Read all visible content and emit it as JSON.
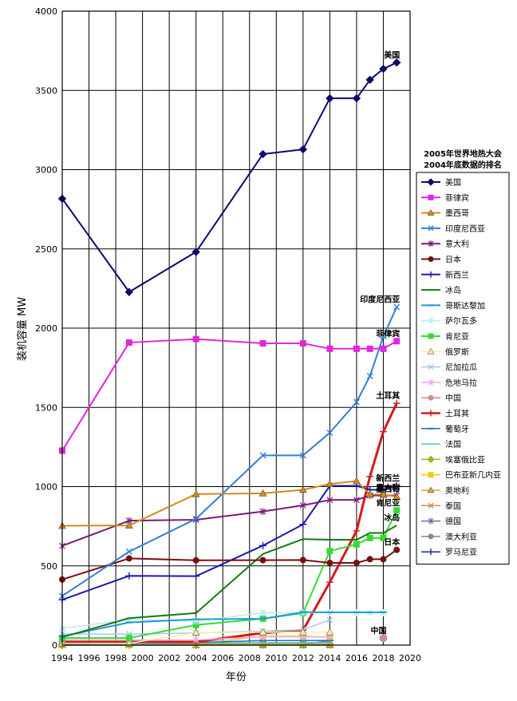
{
  "chart_data": {
    "type": "line",
    "title": "",
    "xlabel": "年份",
    "ylabel": "装机容量 MW",
    "xlim": [
      1994,
      2020
    ],
    "ylim": [
      0,
      4000
    ],
    "x_ticks": [
      "1994",
      "1996",
      "1998",
      "2000",
      "2002",
      "2004",
      "2006",
      "2008",
      "2010",
      "2012",
      "2014",
      "2016",
      "2018",
      "2020"
    ],
    "y_ticks": [
      "0",
      "500",
      "1000",
      "1500",
      "2000",
      "2500",
      "3000",
      "3500",
      "4000"
    ],
    "grid": true,
    "legend": {
      "placement": "right",
      "title_line1": "2005年世界地热大会",
      "title_line2": "2004年底数据的排名"
    },
    "series": [
      {
        "name": "美国",
        "color": "#0b0b6e",
        "marker": "diamond",
        "width": 2,
        "x": [
          1994,
          1999,
          2004,
          2009,
          2012,
          2014,
          2016,
          2017,
          2018,
          2019
        ],
        "y": [
          2817,
          2228,
          2481,
          3098,
          3128,
          3450,
          3450,
          3567,
          3636,
          3676
        ]
      },
      {
        "name": "菲律宾",
        "color": "#e026e0",
        "marker": "square",
        "width": 2,
        "x": [
          1994,
          1999,
          2004,
          2009,
          2012,
          2014,
          2016,
          2017,
          2018,
          2019
        ],
        "y": [
          1227,
          1909,
          1931,
          1904,
          1904,
          1870,
          1870,
          1870,
          1870,
          1918
        ]
      },
      {
        "name": "墨西哥",
        "color": "#d4891c",
        "marker": "triangle",
        "width": 2,
        "x": [
          1994,
          1999,
          2004,
          2009,
          2012,
          2014,
          2016,
          2017,
          2018,
          2019
        ],
        "y": [
          753,
          755,
          953,
          958,
          980,
          1017,
          1035,
          951,
          951,
          936
        ]
      },
      {
        "name": "印度尼西亚",
        "color": "#2f7fd6",
        "marker": "x",
        "width": 2,
        "x": [
          1994,
          1999,
          2004,
          2009,
          2012,
          2014,
          2016,
          2017,
          2018,
          2019
        ],
        "y": [
          310,
          590,
          797,
          1197,
          1197,
          1340,
          1534,
          1698,
          1948,
          2133
        ]
      },
      {
        "name": "意大利",
        "color": "#7a1a7a",
        "marker": "star",
        "width": 2,
        "x": [
          1994,
          1999,
          2004,
          2009,
          2012,
          2014,
          2016,
          2017,
          2018,
          2019
        ],
        "y": [
          626,
          785,
          791,
          843,
          882,
          916,
          916,
          944,
          944,
          944
        ]
      },
      {
        "name": "日本",
        "color": "#7a0f0f",
        "marker": "circle",
        "width": 2,
        "x": [
          1994,
          1999,
          2004,
          2009,
          2012,
          2014,
          2016,
          2017,
          2018,
          2019
        ],
        "y": [
          414,
          547,
          535,
          536,
          537,
          519,
          519,
          542,
          542,
          601
        ]
      },
      {
        "name": "新西兰",
        "color": "#1a1ab0",
        "marker": "plus",
        "width": 2,
        "x": [
          1994,
          1999,
          2004,
          2009,
          2012,
          2014,
          2016,
          2017,
          2018,
          2019
        ],
        "y": [
          286,
          437,
          435,
          628,
          762,
          1005,
          1005,
          980,
          980,
          1005
        ]
      },
      {
        "name": "冰岛",
        "color": "#137a13",
        "marker": "none",
        "width": 2,
        "x": [
          1994,
          1999,
          2004,
          2009,
          2012,
          2014,
          2016,
          2017,
          2018,
          2019
        ],
        "y": [
          50,
          170,
          202,
          575,
          669,
          665,
          665,
          708,
          708,
          755
        ]
      },
      {
        "name": "哥斯达黎加",
        "color": "#1f9ad6",
        "marker": "dash",
        "width": 2,
        "x": [
          1994,
          1999,
          2004,
          2009,
          2012,
          2014,
          2016,
          2017,
          2018
        ],
        "y": [
          55,
          143,
          163,
          166,
          208,
          207,
          207,
          207,
          207
        ]
      },
      {
        "name": "萨尔瓦多",
        "color": "#b8ecf0",
        "marker": "star",
        "width": 1.5,
        "x": [
          1994,
          1999,
          2004,
          2009,
          2012,
          2014,
          2016,
          2017,
          2018
        ],
        "y": [
          105,
          161,
          151,
          204,
          204,
          204,
          204,
          204,
          204
        ]
      },
      {
        "name": "肯尼亚",
        "color": "#33dd33",
        "marker": "square",
        "width": 2,
        "x": [
          1994,
          1999,
          2004,
          2009,
          2012,
          2014,
          2016,
          2017,
          2018,
          2019
        ],
        "y": [
          45,
          45,
          127,
          167,
          202,
          594,
          636,
          676,
          676,
          850
        ]
      },
      {
        "name": "俄罗斯",
        "color": "#f5f099",
        "marker": "triangle",
        "width": 1.5,
        "x": [
          1994,
          1999,
          2004,
          2009,
          2012,
          2014
        ],
        "y": [
          11,
          11,
          79,
          82,
          82,
          82
        ]
      },
      {
        "name": "尼加拉瓜",
        "color": "#a9c8f0",
        "marker": "x",
        "width": 1.5,
        "x": [
          1994,
          1999,
          2004,
          2009,
          2012,
          2014
        ],
        "y": [
          70,
          70,
          77,
          88,
          97,
          159
        ]
      },
      {
        "name": "危地马拉",
        "color": "#eeaaee",
        "marker": "star",
        "width": 1.5,
        "x": [
          1994,
          1999,
          2004,
          2009,
          2012,
          2014
        ],
        "y": [
          33,
          33,
          33,
          52,
          52,
          52
        ]
      },
      {
        "name": "中国",
        "color": "#cc8c8c",
        "marker": "circle",
        "width": 1.5,
        "x": [
          2018
        ],
        "y": [
          44
        ]
      },
      {
        "name": "土耳其",
        "color": "#d41a1a",
        "marker": "plus",
        "width": 3,
        "x": [
          1994,
          1999,
          2004,
          2009,
          2012,
          2014,
          2016,
          2017,
          2018,
          2019
        ],
        "y": [
          20,
          20,
          20,
          77,
          94,
          397,
          721,
          1064,
          1347,
          1526
        ]
      },
      {
        "name": "葡萄牙",
        "color": "#2a6acc",
        "marker": "dash",
        "width": 1.5,
        "x": [
          1994,
          1999,
          2004,
          2009,
          2012,
          2014
        ],
        "y": [
          5,
          16,
          16,
          29,
          29,
          29
        ]
      },
      {
        "name": "法国",
        "color": "#3cc8cc",
        "marker": "none",
        "width": 1.5,
        "x": [
          1994,
          1999,
          2004,
          2009,
          2012,
          2014
        ],
        "y": [
          4,
          4,
          15,
          16,
          16,
          16
        ]
      },
      {
        "name": "埃塞俄比亚",
        "color": "#a8b020",
        "marker": "diamond",
        "width": 1.5,
        "x": [
          1994,
          1999,
          2004,
          2009,
          2012,
          2014
        ],
        "y": [
          0,
          7,
          7,
          7,
          7,
          7
        ]
      },
      {
        "name": "巴布亚新几内亚",
        "color": "#f0c820",
        "marker": "square",
        "width": 1.5,
        "x": [
          1994,
          1999,
          2004,
          2009,
          2012,
          2014
        ],
        "y": [
          0,
          0,
          6,
          56,
          56,
          50
        ]
      },
      {
        "name": "奥地利",
        "color": "#e0a830",
        "marker": "triangle",
        "width": 1.5,
        "x": [
          1994,
          1999,
          2004,
          2009,
          2012,
          2014
        ],
        "y": [
          0,
          0,
          1,
          1,
          1,
          1
        ]
      },
      {
        "name": "泰国",
        "color": "#d4884c",
        "marker": "x",
        "width": 1.5,
        "x": [
          1994,
          1999,
          2004,
          2009,
          2012,
          2014
        ],
        "y": [
          0,
          0,
          0,
          0,
          0,
          0
        ]
      },
      {
        "name": "德国",
        "color": "#7a6aa0",
        "marker": "star",
        "width": 1.5,
        "x": [
          1994,
          1999,
          2004,
          2009,
          2012,
          2014
        ],
        "y": [
          0,
          0,
          0,
          7,
          7,
          27
        ]
      },
      {
        "name": "澳大利亚",
        "color": "#888888",
        "marker": "circle",
        "width": 1.5,
        "x": [
          1994,
          1999,
          2004,
          2009,
          2012,
          2014
        ],
        "y": [
          0,
          0,
          0,
          1,
          1,
          1
        ]
      },
      {
        "name": "罗马尼亚",
        "color": "#1a2a8a",
        "marker": "plus",
        "width": 1.5,
        "x": [
          1994,
          1999,
          2004,
          2009,
          2012,
          2014
        ],
        "y": [
          2,
          2,
          2,
          2,
          2,
          2
        ]
      }
    ],
    "annotations": [
      {
        "text": "美国",
        "x": 2019,
        "y": 3676
      },
      {
        "text": "印度尼西亚",
        "x": 2019,
        "y": 2133
      },
      {
        "text": "菲律宾",
        "x": 2019,
        "y": 1918
      },
      {
        "text": "土耳其",
        "x": 2019,
        "y": 1526
      },
      {
        "text": "新西兰",
        "x": 2019,
        "y": 1005
      },
      {
        "text": "墨西哥",
        "x": 2019,
        "y": 936
      },
      {
        "text": "意大利",
        "x": 2019,
        "y": 944
      },
      {
        "text": "肯尼亚",
        "x": 2019,
        "y": 850
      },
      {
        "text": "冰岛",
        "x": 2019,
        "y": 755
      },
      {
        "text": "日本",
        "x": 2019,
        "y": 601
      },
      {
        "text": "中国",
        "x": 2018,
        "y": 44
      }
    ]
  }
}
